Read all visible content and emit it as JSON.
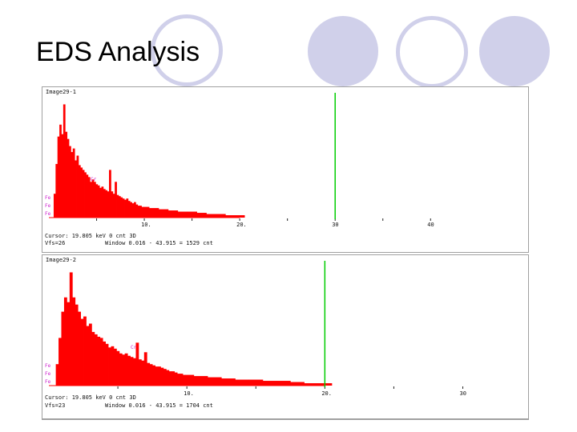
{
  "slide": {
    "title": "EDS Analysis",
    "accent_color": "#d0d0ea"
  },
  "chart_data": [
    {
      "type": "bar",
      "title": "Image29-1",
      "xlabel": "",
      "ylabel": "",
      "xlim": [
        0,
        43
      ],
      "xticks": [
        "10.",
        "20.",
        "30",
        "40"
      ],
      "xtick_values": [
        10,
        20,
        30,
        40
      ],
      "cursor_text": "Cursor: 19.805 keV   0 cnt  3D",
      "vfs_text": "Vfs=26",
      "window_text": "Window 0.016 - 43.915 =  1529 cnt",
      "marker_x": 30,
      "series_color": "#ff0000",
      "marker_color": "#00cc00",
      "peak_labels": [
        "Fe",
        "Fe",
        "Fe",
        "Cr"
      ],
      "ylim": [
        0,
        1
      ],
      "bins": {
        "x": [
          0.5,
          0.7,
          0.9,
          1.1,
          1.3,
          1.5,
          1.7,
          1.9,
          2.1,
          2.3,
          2.5,
          2.7,
          2.9,
          3.1,
          3.3,
          3.5,
          3.7,
          3.9,
          4.1,
          4.3,
          4.5,
          4.7,
          4.9,
          5.1,
          5.3,
          5.5,
          5.7,
          5.9,
          6.1,
          6.3,
          6.5,
          6.7,
          6.9,
          7.1,
          7.3,
          7.5,
          7.7,
          7.9,
          8.1,
          8.3,
          8.5,
          8.7,
          8.9,
          9.1,
          9.3,
          9.5,
          9.7,
          9.9,
          10.5,
          11.5,
          12.5,
          13.5,
          14.5,
          15.5,
          16.5,
          17.5,
          18.5,
          19.5
        ],
        "y": [
          0.2,
          0.45,
          0.68,
          0.78,
          0.7,
          0.95,
          0.72,
          0.66,
          0.6,
          0.55,
          0.58,
          0.48,
          0.52,
          0.44,
          0.42,
          0.4,
          0.38,
          0.36,
          0.34,
          0.3,
          0.32,
          0.3,
          0.28,
          0.27,
          0.25,
          0.26,
          0.24,
          0.23,
          0.22,
          0.4,
          0.22,
          0.2,
          0.3,
          0.19,
          0.18,
          0.17,
          0.16,
          0.15,
          0.16,
          0.14,
          0.13,
          0.12,
          0.13,
          0.11,
          0.1,
          0.1,
          0.09,
          0.09,
          0.08,
          0.07,
          0.06,
          0.05,
          0.05,
          0.04,
          0.03,
          0.03,
          0.02,
          0.02
        ]
      }
    },
    {
      "type": "bar",
      "title": "Image29-2",
      "xlabel": "",
      "ylabel": "",
      "xlim": [
        0,
        34.5
      ],
      "xticks": [
        "10.",
        "20.",
        "30"
      ],
      "xtick_values": [
        10,
        20,
        30
      ],
      "cursor_text": "Cursor: 19.805 keV   0 cnt  3D",
      "vfs_text": "Vfs=23",
      "window_text": "Window 0.016 - 43.915 =  1704 cnt",
      "marker_x": 20,
      "series_color": "#ff0000",
      "marker_color": "#00cc00",
      "peak_labels": [
        "Fe",
        "Fe",
        "Fe",
        "Cr"
      ],
      "ylim": [
        0,
        1
      ],
      "bins": {
        "x": [
          0.5,
          0.7,
          0.9,
          1.1,
          1.3,
          1.5,
          1.7,
          1.9,
          2.1,
          2.3,
          2.5,
          2.7,
          2.9,
          3.1,
          3.3,
          3.5,
          3.7,
          3.9,
          4.1,
          4.3,
          4.5,
          4.7,
          4.9,
          5.1,
          5.3,
          5.5,
          5.7,
          5.9,
          6.1,
          6.3,
          6.5,
          6.7,
          6.9,
          7.1,
          7.3,
          7.5,
          7.7,
          7.9,
          8.1,
          8.3,
          8.5,
          8.7,
          8.9,
          9.1,
          9.3,
          9.5,
          9.7,
          9.9,
          10.5,
          11.5,
          12.5,
          13.5,
          14.5,
          15.5,
          16.5,
          17.5,
          18.5,
          19.5
        ],
        "y": [
          0.18,
          0.4,
          0.62,
          0.74,
          0.7,
          0.95,
          0.74,
          0.68,
          0.62,
          0.56,
          0.58,
          0.5,
          0.52,
          0.45,
          0.43,
          0.41,
          0.4,
          0.37,
          0.35,
          0.32,
          0.33,
          0.31,
          0.29,
          0.27,
          0.26,
          0.27,
          0.25,
          0.24,
          0.23,
          0.36,
          0.22,
          0.21,
          0.28,
          0.19,
          0.18,
          0.17,
          0.16,
          0.16,
          0.15,
          0.14,
          0.13,
          0.12,
          0.12,
          0.11,
          0.1,
          0.1,
          0.09,
          0.09,
          0.08,
          0.07,
          0.06,
          0.05,
          0.05,
          0.04,
          0.04,
          0.03,
          0.02,
          0.02
        ]
      }
    }
  ]
}
